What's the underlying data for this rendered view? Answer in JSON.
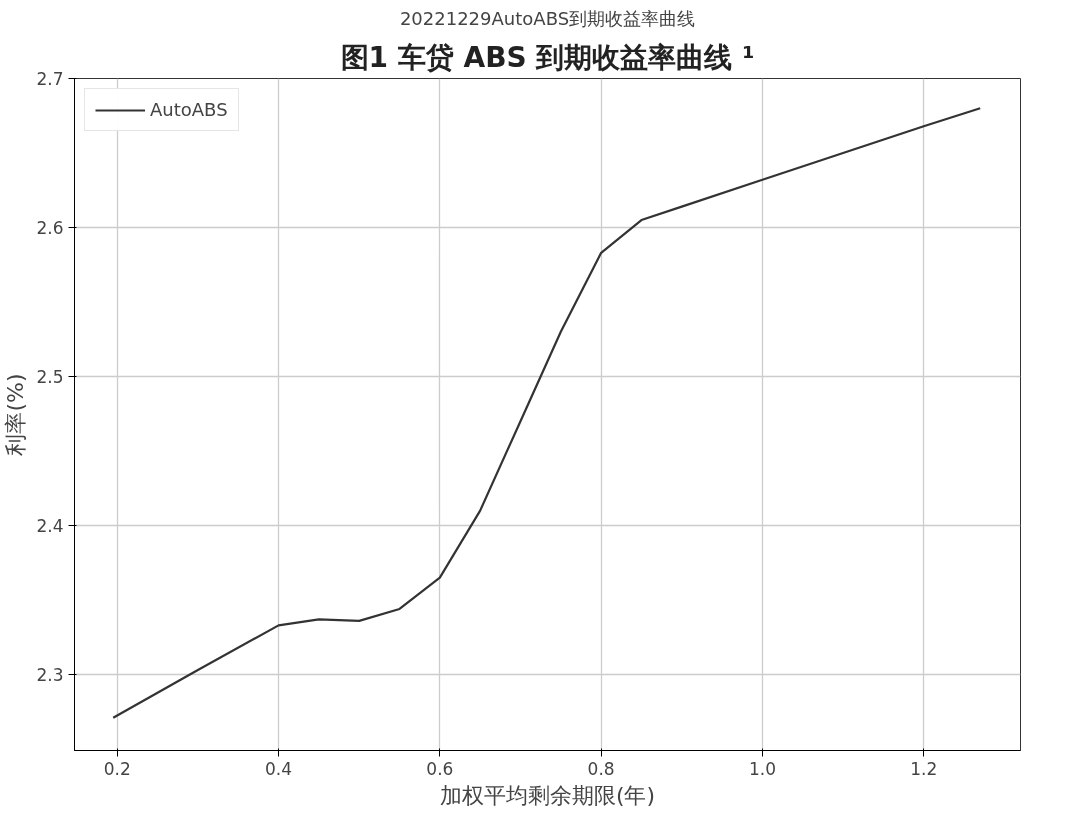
{
  "chart_data": {
    "type": "line",
    "title": "图1 车贷 ABS 到期收益率曲线 ¹",
    "subtitle": "20221229AutoABS到期收益率曲线",
    "xlabel": "加权平均剩余期限(年)",
    "ylabel": "利率(%)",
    "x": [
      0.195,
      0.3,
      0.4,
      0.45,
      0.5,
      0.55,
      0.6,
      0.65,
      0.7,
      0.75,
      0.8,
      0.85,
      0.9,
      1.0,
      1.1,
      1.2,
      1.27
    ],
    "series": [
      {
        "name": "AutoABS",
        "color": "#333333",
        "values": [
          2.271,
          2.303,
          2.333,
          2.337,
          2.336,
          2.344,
          2.365,
          2.41,
          2.47,
          2.53,
          2.583,
          2.605,
          2.614,
          2.632,
          2.65,
          2.668,
          2.68
        ]
      }
    ],
    "xlim": [
      0.147,
      1.32
    ],
    "ylim": [
      2.249,
      2.7
    ],
    "xticks": [
      0.2,
      0.4,
      0.6,
      0.8,
      {
        "value": 1.0,
        "label": "1.0"
      },
      1.2
    ],
    "yticks": [
      2.3,
      2.4,
      2.5,
      2.6,
      2.7
    ],
    "grid": true,
    "legend": "top left",
    "line_style": "solid",
    "marker": "none"
  }
}
